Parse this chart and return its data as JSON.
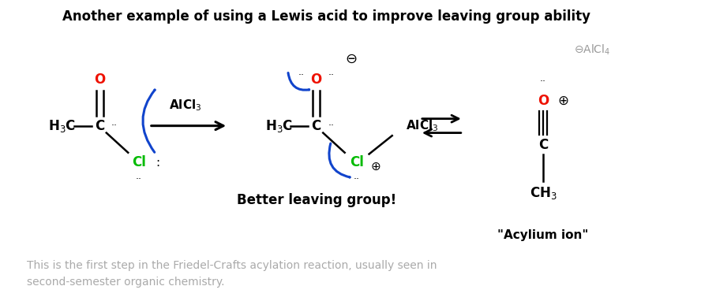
{
  "title": "Another example of using a Lewis acid to improve leaving group ability",
  "title_fontsize": 12,
  "bg_color": "#ffffff",
  "footnote": "This is the first step in the Friedel-Crafts acylation reaction, usually seen in\nsecond-semester organic chemistry.",
  "footnote_color": "#aaaaaa",
  "footnote_fontsize": 10,
  "color_O": "#ee1100",
  "color_Cl": "#00bb00",
  "color_black": "#000000",
  "color_blue": "#1144cc",
  "color_gray": "#999999",
  "xlim": [
    0,
    10
  ],
  "ylim": [
    0,
    4.2
  ],
  "figsize": [
    8.88,
    3.82
  ],
  "dpi": 100
}
